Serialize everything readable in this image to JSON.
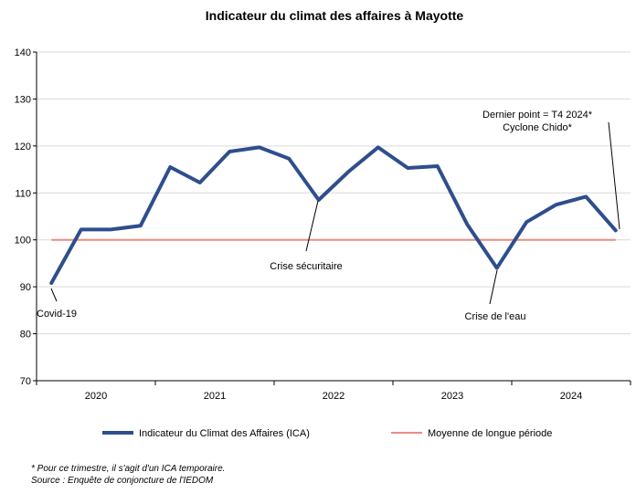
{
  "chart_data": {
    "type": "line",
    "title": "Indicateur du climat des affaires à Mayotte",
    "ylim": [
      70,
      140
    ],
    "yticks": [
      70,
      80,
      90,
      100,
      110,
      120,
      130,
      140
    ],
    "year_labels": [
      "2020",
      "2021",
      "2022",
      "2023",
      "2024"
    ],
    "x": [
      "T1 2020",
      "T2 2020",
      "T3 2020",
      "T4 2020",
      "T1 2021",
      "T2 2021",
      "T3 2021",
      "T4 2021",
      "T1 2022",
      "T2 2022",
      "T3 2022",
      "T4 2022",
      "T1 2023",
      "T2 2023",
      "T3 2023",
      "T4 2023",
      "T1 2024",
      "T2 2024",
      "T3 2024",
      "T4 2024"
    ],
    "grid": true,
    "legend_position": "bottom",
    "series": [
      {
        "name": "Indicateur du Climat des Affaires (ICA)",
        "color": "#2e4e8c",
        "values": [
          90.8,
          102.2,
          102.2,
          103.0,
          115.5,
          112.2,
          118.8,
          119.7,
          117.3,
          108.5,
          114.5,
          119.7,
          115.3,
          115.7,
          103.3,
          94.0,
          103.8,
          107.5,
          109.2,
          102.0
        ]
      },
      {
        "name": "Moyenne de longue période",
        "color": "#ee8a7e",
        "values": [
          100,
          100,
          100,
          100,
          100,
          100,
          100,
          100,
          100,
          100,
          100,
          100,
          100,
          100,
          100,
          100,
          100,
          100,
          100,
          100
        ]
      }
    ],
    "annotations": [
      {
        "text": "Covid-19",
        "index": 0
      },
      {
        "text": "Crise sécuritaire",
        "index": 9
      },
      {
        "text": "Crise de l'eau",
        "index": 15
      },
      {
        "text": "Dernier point = T4  2024*",
        "index": 19
      },
      {
        "text": "Cyclone Chido*",
        "index": 19
      }
    ]
  },
  "footnotes": {
    "note": "* Pour ce trimestre, il s'agit d'un ICA temporaire.",
    "source": "Source : Enquête de conjoncture de l'IEDOM"
  }
}
